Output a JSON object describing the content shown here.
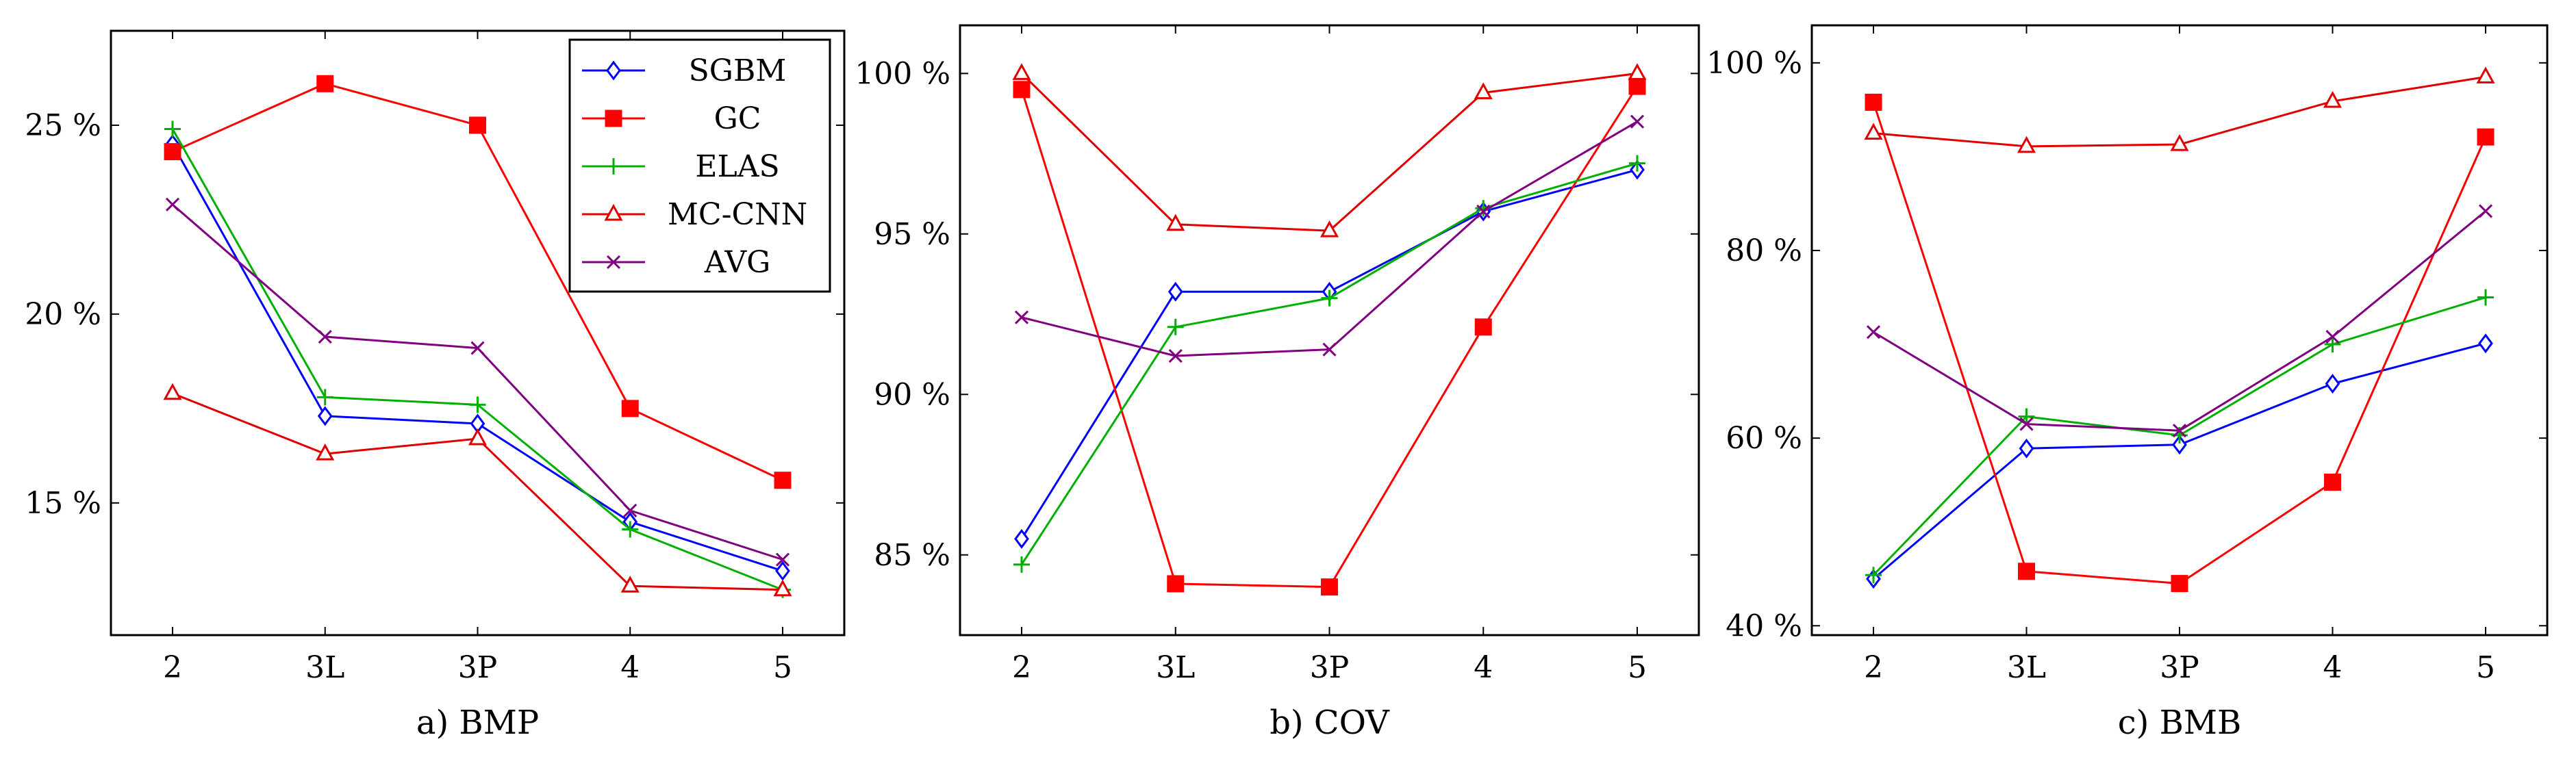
{
  "chart_data": [
    {
      "type": "line",
      "caption": "a) BMP",
      "categories": [
        "2",
        "3L",
        "3P",
        "4",
        "5"
      ],
      "ylim": [
        11.5,
        27.5
      ],
      "yticks": [
        15,
        20,
        25
      ],
      "ytick_labels": [
        "15 %",
        "20 %",
        "25 %"
      ],
      "series": [
        {
          "name": "SGBM",
          "values": [
            24.5,
            17.3,
            17.1,
            14.5,
            13.2
          ]
        },
        {
          "name": "GC",
          "values": [
            24.3,
            26.1,
            25.0,
            17.5,
            15.6
          ]
        },
        {
          "name": "ELAS",
          "values": [
            24.9,
            17.8,
            17.6,
            14.3,
            12.7
          ]
        },
        {
          "name": "MC-CNN",
          "values": [
            17.9,
            16.3,
            16.7,
            12.8,
            12.7
          ]
        },
        {
          "name": "AVG",
          "values": [
            22.9,
            19.4,
            19.1,
            14.8,
            13.5
          ]
        }
      ],
      "legend": {
        "position": "top-right"
      }
    },
    {
      "type": "line",
      "caption": "b) COV",
      "categories": [
        "2",
        "3L",
        "3P",
        "4",
        "5"
      ],
      "ylim": [
        82.5,
        101.5
      ],
      "yticks": [
        85,
        90,
        95,
        100
      ],
      "ytick_labels": [
        "85 %",
        "90 %",
        "95 %",
        "100 %"
      ],
      "series": [
        {
          "name": "SGBM",
          "values": [
            85.5,
            93.2,
            93.2,
            95.7,
            97.0
          ]
        },
        {
          "name": "GC",
          "values": [
            99.5,
            84.1,
            84.0,
            92.1,
            99.6
          ]
        },
        {
          "name": "ELAS",
          "values": [
            84.7,
            92.1,
            93.0,
            95.8,
            97.2
          ]
        },
        {
          "name": "MC-CNN",
          "values": [
            100.0,
            95.3,
            95.1,
            99.4,
            100.0
          ]
        },
        {
          "name": "AVG",
          "values": [
            92.4,
            91.2,
            91.4,
            95.7,
            98.5
          ]
        }
      ]
    },
    {
      "type": "line",
      "caption": "c) BMB",
      "categories": [
        "2",
        "3L",
        "3P",
        "4",
        "5"
      ],
      "ylim": [
        39,
        104
      ],
      "yticks": [
        40,
        60,
        80,
        100
      ],
      "ytick_labels": [
        "40 %",
        "60 %",
        "80 %",
        "100 %"
      ],
      "series": [
        {
          "name": "SGBM",
          "values": [
            45.0,
            58.9,
            59.3,
            65.8,
            70.1
          ]
        },
        {
          "name": "GC",
          "values": [
            95.8,
            45.8,
            44.5,
            55.3,
            92.1
          ]
        },
        {
          "name": "ELAS",
          "values": [
            45.4,
            62.3,
            60.3,
            70.0,
            75.0
          ]
        },
        {
          "name": "MC-CNN",
          "values": [
            92.5,
            91.1,
            91.3,
            95.9,
            98.5
          ]
        },
        {
          "name": "AVG",
          "values": [
            71.3,
            61.5,
            60.8,
            70.8,
            84.2
          ]
        }
      ]
    }
  ],
  "styles": {
    "SGBM": {
      "color": "#0000ff",
      "marker": "diamond"
    },
    "GC": {
      "color": "#ff0000",
      "marker": "square"
    },
    "ELAS": {
      "color": "#00b000",
      "marker": "plus"
    },
    "MC-CNN": {
      "color": "#e00000",
      "marker": "triangle"
    },
    "AVG": {
      "color": "#800080",
      "marker": "x"
    }
  }
}
